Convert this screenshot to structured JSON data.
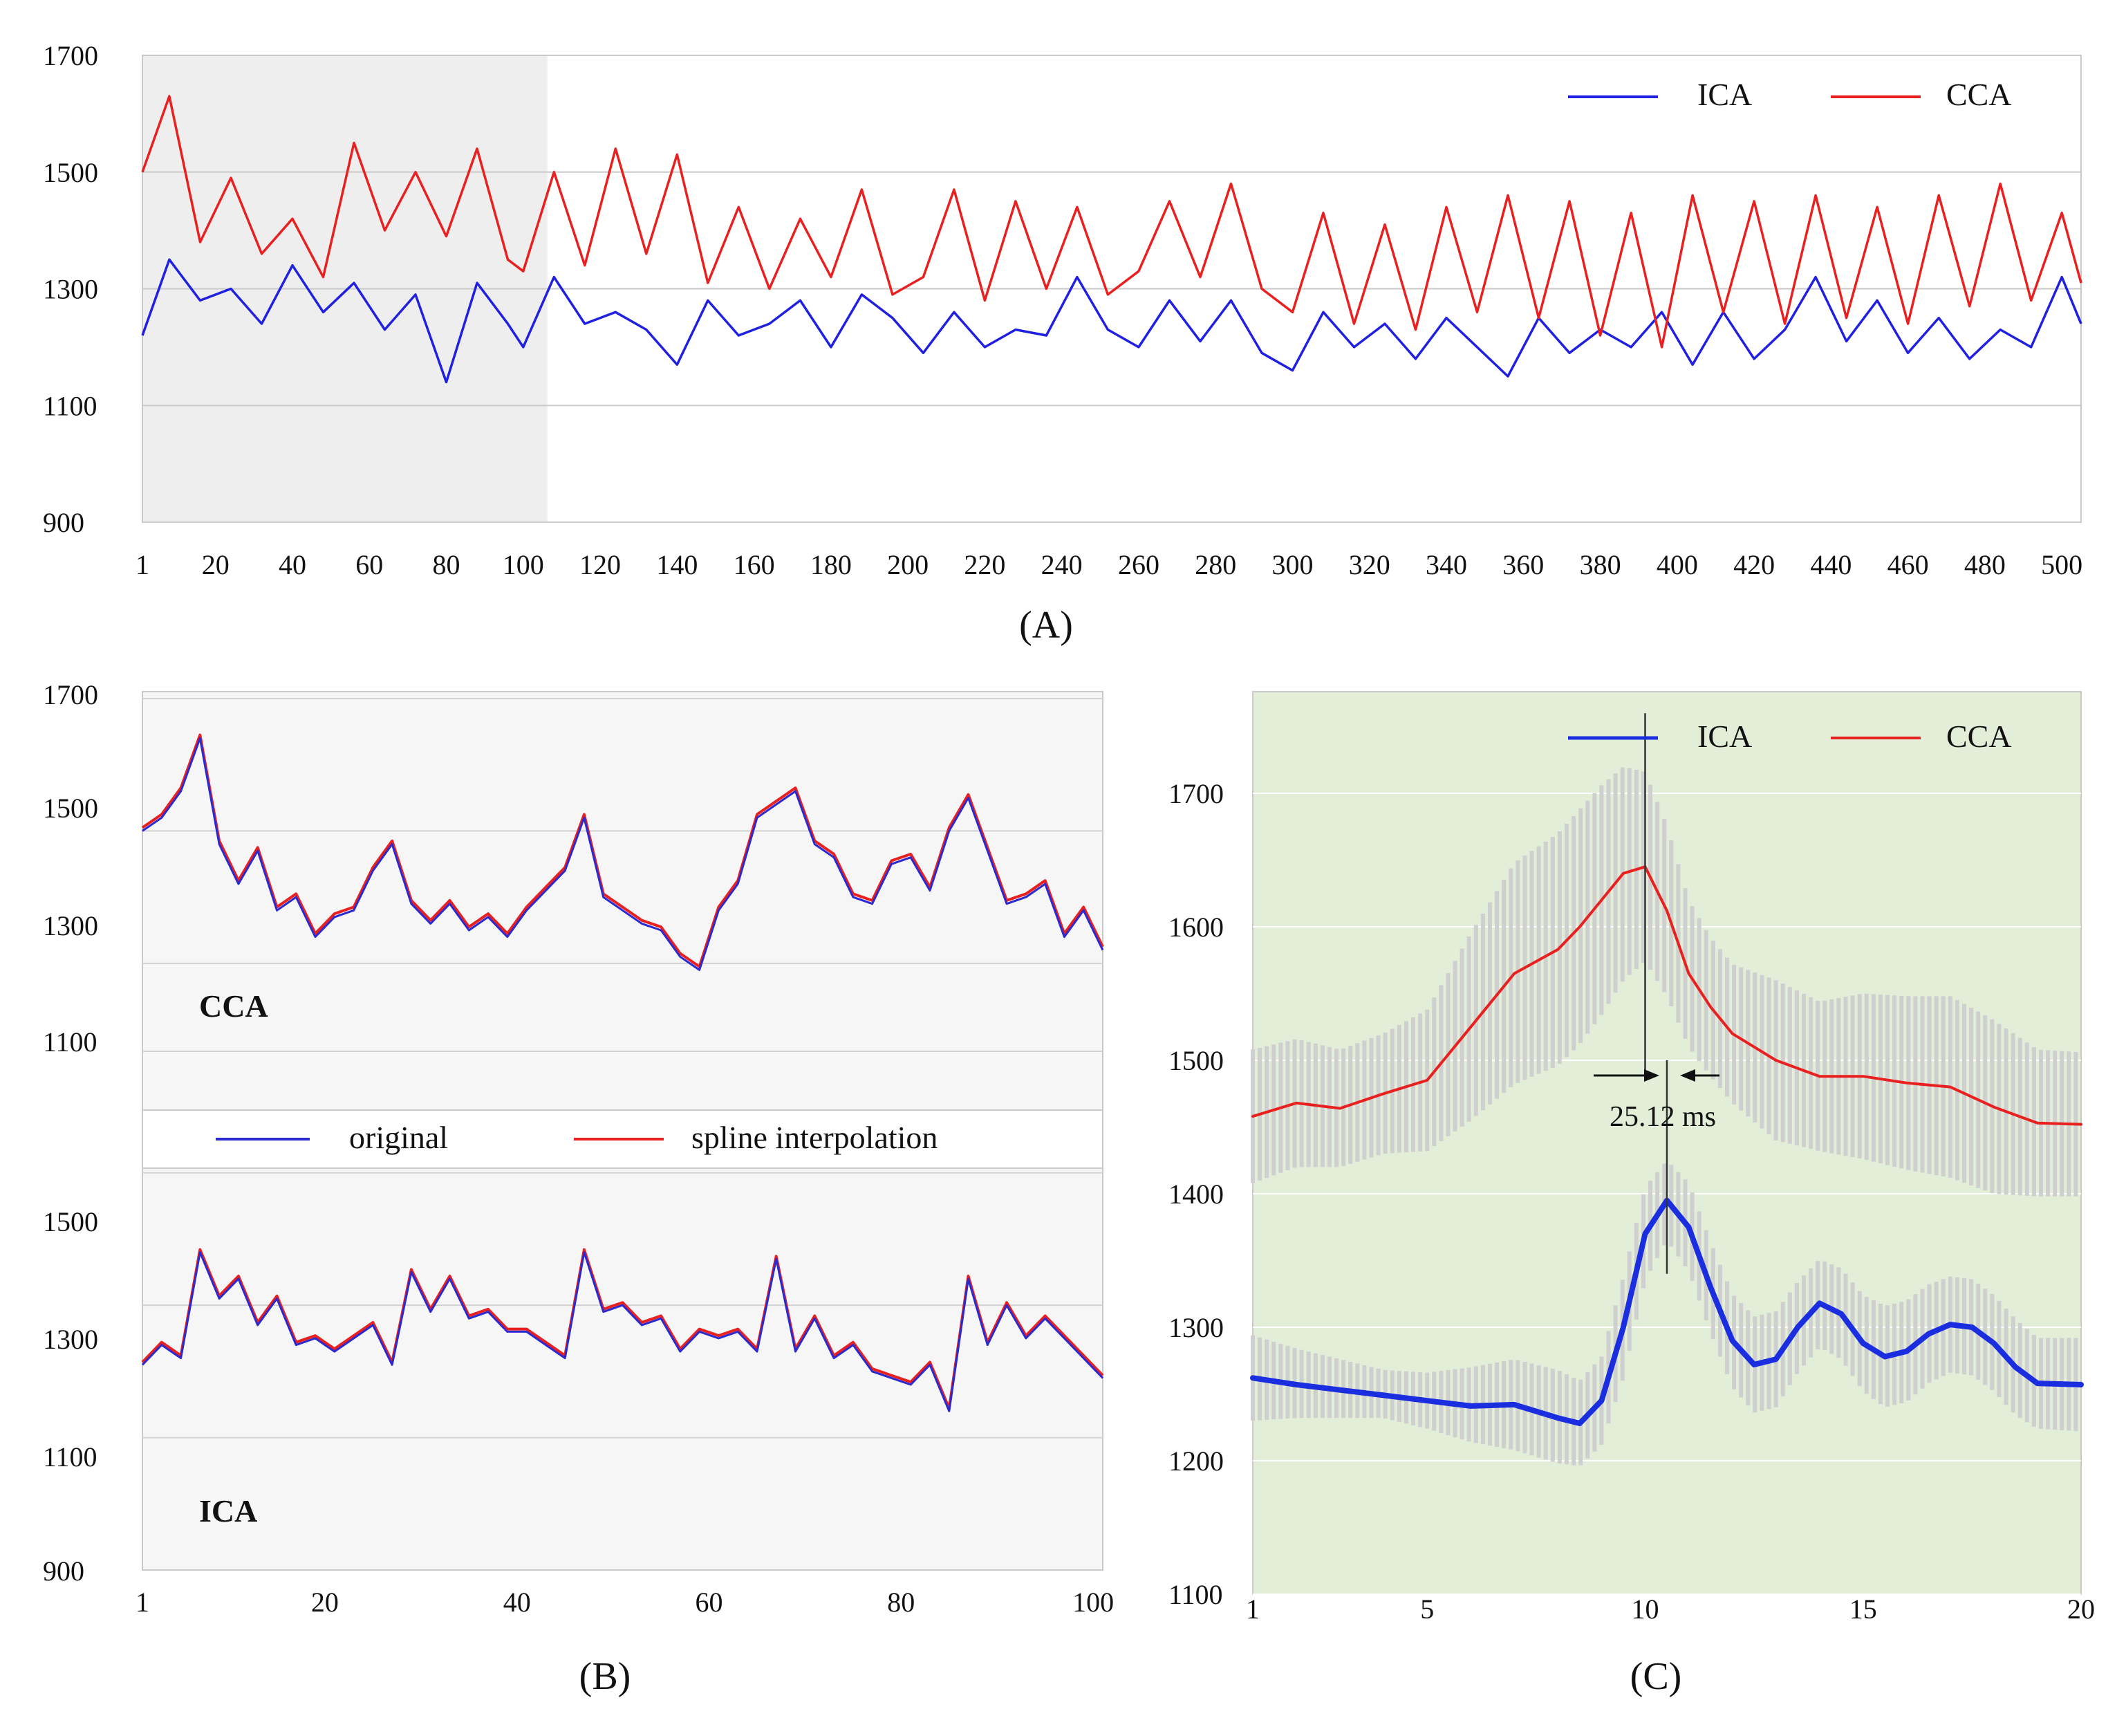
{
  "chart_data": [
    {
      "panel": "A",
      "type": "line",
      "panel_label": "(A)",
      "x_range": [
        1,
        505
      ],
      "ylim": [
        900,
        1700
      ],
      "yticks": [
        900,
        1100,
        1300,
        1500,
        1700
      ],
      "xticks": [
        1,
        20,
        40,
        60,
        80,
        100,
        120,
        140,
        160,
        180,
        200,
        220,
        240,
        260,
        280,
        300,
        320,
        340,
        360,
        380,
        400,
        420,
        440,
        460,
        480,
        500
      ],
      "shaded_region": [
        1,
        100
      ],
      "grid": "horizontal",
      "legend_position": "top-right",
      "series": [
        {
          "name": "ICA",
          "color": "#2020e0",
          "x": [
            1,
            8,
            16,
            24,
            32,
            40,
            48,
            56,
            64,
            72,
            80,
            88,
            96,
            100,
            108,
            116,
            124,
            132,
            140,
            148,
            156,
            164,
            172,
            180,
            188,
            196,
            204,
            212,
            220,
            228,
            236,
            244,
            252,
            260,
            268,
            276,
            284,
            292,
            300,
            308,
            316,
            324,
            332,
            340,
            348,
            356,
            364,
            372,
            380,
            388,
            396,
            404,
            412,
            420,
            428,
            436,
            444,
            452,
            460,
            468,
            476,
            484,
            492,
            500,
            505
          ],
          "values": [
            1220,
            1350,
            1280,
            1300,
            1240,
            1340,
            1260,
            1310,
            1230,
            1290,
            1140,
            1310,
            1240,
            1200,
            1320,
            1240,
            1260,
            1230,
            1170,
            1280,
            1220,
            1240,
            1280,
            1200,
            1290,
            1250,
            1190,
            1260,
            1200,
            1230,
            1220,
            1320,
            1230,
            1200,
            1280,
            1210,
            1280,
            1190,
            1160,
            1260,
            1200,
            1240,
            1180,
            1250,
            1200,
            1150,
            1250,
            1190,
            1230,
            1200,
            1260,
            1170,
            1260,
            1180,
            1230,
            1320,
            1210,
            1280,
            1190,
            1250,
            1180,
            1230,
            1200,
            1320,
            1240
          ]
        },
        {
          "name": "CCA",
          "color": "#e82020",
          "x": [
            1,
            8,
            16,
            24,
            32,
            40,
            48,
            56,
            64,
            72,
            80,
            88,
            96,
            100,
            108,
            116,
            124,
            132,
            140,
            148,
            156,
            164,
            172,
            180,
            188,
            196,
            204,
            212,
            220,
            228,
            236,
            244,
            252,
            260,
            268,
            276,
            284,
            292,
            300,
            308,
            316,
            324,
            332,
            340,
            348,
            356,
            364,
            372,
            380,
            388,
            396,
            404,
            412,
            420,
            428,
            436,
            444,
            452,
            460,
            468,
            476,
            484,
            492,
            500,
            505
          ],
          "values": [
            1500,
            1630,
            1380,
            1490,
            1360,
            1420,
            1320,
            1550,
            1400,
            1500,
            1390,
            1540,
            1350,
            1330,
            1500,
            1340,
            1540,
            1360,
            1530,
            1310,
            1440,
            1300,
            1420,
            1320,
            1470,
            1290,
            1320,
            1470,
            1280,
            1450,
            1300,
            1440,
            1290,
            1330,
            1450,
            1320,
            1480,
            1300,
            1260,
            1430,
            1240,
            1410,
            1230,
            1440,
            1260,
            1460,
            1250,
            1450,
            1220,
            1430,
            1200,
            1460,
            1260,
            1450,
            1240,
            1460,
            1250,
            1440,
            1240,
            1460,
            1270,
            1480,
            1280,
            1430,
            1310
          ]
        }
      ]
    },
    {
      "panel": "B",
      "type": "line",
      "panel_label": "(B)",
      "x_range": [
        1,
        101
      ],
      "ylim": [
        900,
        1700
      ],
      "yticks": [
        900,
        1100,
        1300,
        1500,
        1700
      ],
      "ylim_top_section": [
        1000,
        1700
      ],
      "ylim_bottom_section": [
        900,
        1600
      ],
      "xticks": [
        1,
        20,
        40,
        60,
        80,
        100
      ],
      "grid": "horizontal",
      "legend_position": "center",
      "inline_labels": [
        "CCA",
        "ICA"
      ],
      "series": [
        {
          "name": "original",
          "color": "#2a2ad0",
          "group": "CCA",
          "x": [
            1,
            3,
            5,
            7,
            9,
            11,
            13,
            15,
            17,
            19,
            21,
            23,
            25,
            27,
            29,
            31,
            33,
            35,
            37,
            39,
            41,
            43,
            45,
            47,
            49,
            51,
            53,
            55,
            57,
            59,
            61,
            63,
            65,
            67,
            69,
            71,
            73,
            75,
            77,
            79,
            81,
            83,
            85,
            87,
            89,
            91,
            93,
            95,
            97,
            99,
            101
          ],
          "values": [
            1500,
            1520,
            1560,
            1640,
            1480,
            1420,
            1470,
            1380,
            1400,
            1340,
            1370,
            1380,
            1440,
            1480,
            1390,
            1360,
            1390,
            1350,
            1370,
            1340,
            1380,
            1410,
            1440,
            1520,
            1400,
            1380,
            1360,
            1350,
            1310,
            1290,
            1380,
            1420,
            1520,
            1540,
            1560,
            1480,
            1460,
            1400,
            1390,
            1450,
            1460,
            1410,
            1500,
            1550,
            1470,
            1390,
            1400,
            1420,
            1340,
            1380,
            1320
          ]
        },
        {
          "name": "spline interpolation",
          "color": "#e82020",
          "group": "CCA",
          "x": [
            1,
            3,
            5,
            7,
            9,
            11,
            13,
            15,
            17,
            19,
            21,
            23,
            25,
            27,
            29,
            31,
            33,
            35,
            37,
            39,
            41,
            43,
            45,
            47,
            49,
            51,
            53,
            55,
            57,
            59,
            61,
            63,
            65,
            67,
            69,
            71,
            73,
            75,
            77,
            79,
            81,
            83,
            85,
            87,
            89,
            91,
            93,
            95,
            97,
            99,
            101
          ],
          "values": [
            1505,
            1525,
            1565,
            1645,
            1485,
            1425,
            1475,
            1385,
            1405,
            1345,
            1375,
            1385,
            1445,
            1485,
            1395,
            1365,
            1395,
            1355,
            1375,
            1345,
            1385,
            1415,
            1445,
            1525,
            1405,
            1385,
            1365,
            1355,
            1315,
            1295,
            1385,
            1425,
            1525,
            1545,
            1565,
            1485,
            1465,
            1405,
            1395,
            1455,
            1465,
            1415,
            1505,
            1555,
            1475,
            1395,
            1405,
            1425,
            1345,
            1385,
            1325
          ]
        },
        {
          "name": "original",
          "color": "#2a2ad0",
          "group": "ICA",
          "x": [
            1,
            3,
            5,
            7,
            9,
            11,
            13,
            15,
            17,
            19,
            21,
            23,
            25,
            27,
            29,
            31,
            33,
            35,
            37,
            39,
            41,
            43,
            45,
            47,
            49,
            51,
            53,
            55,
            57,
            59,
            61,
            63,
            65,
            67,
            69,
            71,
            73,
            75,
            77,
            79,
            81,
            83,
            85,
            87,
            89,
            91,
            93,
            95,
            97,
            99,
            101
          ],
          "values": [
            1210,
            1240,
            1220,
            1380,
            1310,
            1340,
            1270,
            1310,
            1240,
            1250,
            1230,
            1250,
            1270,
            1210,
            1350,
            1290,
            1340,
            1280,
            1290,
            1260,
            1260,
            1240,
            1220,
            1380,
            1290,
            1300,
            1270,
            1280,
            1230,
            1260,
            1250,
            1260,
            1230,
            1370,
            1230,
            1280,
            1220,
            1240,
            1200,
            1190,
            1180,
            1210,
            1140,
            1340,
            1240,
            1300,
            1250,
            1280,
            1250,
            1220,
            1190
          ]
        },
        {
          "name": "spline interpolation",
          "color": "#e82020",
          "group": "ICA",
          "x": [
            1,
            3,
            5,
            7,
            9,
            11,
            13,
            15,
            17,
            19,
            21,
            23,
            25,
            27,
            29,
            31,
            33,
            35,
            37,
            39,
            41,
            43,
            45,
            47,
            49,
            51,
            53,
            55,
            57,
            59,
            61,
            63,
            65,
            67,
            69,
            71,
            73,
            75,
            77,
            79,
            81,
            83,
            85,
            87,
            89,
            91,
            93,
            95,
            97,
            99,
            101
          ],
          "values": [
            1214,
            1244,
            1224,
            1384,
            1314,
            1344,
            1274,
            1314,
            1244,
            1254,
            1234,
            1254,
            1274,
            1214,
            1354,
            1294,
            1344,
            1284,
            1294,
            1264,
            1264,
            1244,
            1224,
            1384,
            1294,
            1304,
            1274,
            1284,
            1234,
            1264,
            1254,
            1264,
            1234,
            1374,
            1234,
            1284,
            1224,
            1244,
            1204,
            1194,
            1184,
            1214,
            1144,
            1344,
            1244,
            1304,
            1254,
            1284,
            1254,
            1224,
            1194
          ]
        }
      ]
    },
    {
      "panel": "C",
      "type": "line",
      "panel_label": "(C)",
      "x_range": [
        1,
        20
      ],
      "ylim": [
        1100,
        1760
      ],
      "yticks": [
        1100,
        1200,
        1300,
        1400,
        1500,
        1600,
        1700
      ],
      "xticks": [
        1,
        5,
        10,
        15,
        20
      ],
      "grid": "horizontal",
      "legend_position": "top-right",
      "annotation": "25.12 ms",
      "series": [
        {
          "name": "ICA",
          "color": "#1a2ee0",
          "x": [
            1,
            2,
            3,
            4,
            5,
            6,
            7,
            8,
            8.5,
            9,
            9.5,
            10,
            10.5,
            11,
            11.5,
            12,
            12.5,
            13,
            13.5,
            14,
            14.5,
            15,
            15.5,
            16,
            16.5,
            17,
            17.5,
            18,
            18.5,
            19,
            20
          ],
          "values": [
            1262,
            1257,
            1253,
            1249,
            1245,
            1241,
            1242,
            1232,
            1228,
            1245,
            1300,
            1370,
            1395,
            1375,
            1330,
            1290,
            1272,
            1276,
            1300,
            1318,
            1310,
            1288,
            1278,
            1282,
            1295,
            1302,
            1300,
            1288,
            1270,
            1258,
            1257
          ],
          "band_low": [
            1230,
            1232,
            1232,
            1232,
            1224,
            1214,
            1208,
            1198,
            1196,
            1212,
            1262,
            1335,
            1365,
            1342,
            1296,
            1255,
            1236,
            1240,
            1266,
            1285,
            1276,
            1252,
            1240,
            1244,
            1258,
            1266,
            1264,
            1252,
            1234,
            1224,
            1222
          ],
          "band_high": [
            1294,
            1284,
            1276,
            1268,
            1266,
            1270,
            1276,
            1268,
            1260,
            1278,
            1338,
            1405,
            1425,
            1408,
            1364,
            1325,
            1308,
            1312,
            1334,
            1351,
            1344,
            1324,
            1316,
            1320,
            1332,
            1338,
            1336,
            1324,
            1306,
            1292,
            1292
          ]
        },
        {
          "name": "CCA",
          "color": "#e82020",
          "x": [
            1,
            2,
            3,
            4,
            5,
            6,
            7,
            8,
            8.5,
            9,
            9.5,
            10,
            10.5,
            11,
            11.5,
            12,
            13,
            14,
            15,
            16,
            17,
            18,
            19,
            20
          ],
          "values": [
            1458,
            1468,
            1464,
            1475,
            1485,
            1525,
            1565,
            1583,
            1600,
            1620,
            1640,
            1645,
            1612,
            1565,
            1540,
            1520,
            1500,
            1488,
            1488,
            1483,
            1480,
            1465,
            1453,
            1452
          ],
          "band_low": [
            1408,
            1420,
            1420,
            1430,
            1432,
            1455,
            1482,
            1496,
            1512,
            1534,
            1560,
            1574,
            1548,
            1510,
            1488,
            1468,
            1440,
            1432,
            1426,
            1418,
            1412,
            1400,
            1398,
            1398
          ],
          "band_high": [
            1508,
            1516,
            1508,
            1520,
            1538,
            1595,
            1648,
            1670,
            1688,
            1706,
            1720,
            1716,
            1676,
            1620,
            1592,
            1572,
            1560,
            1544,
            1550,
            1548,
            1548,
            1530,
            1508,
            1506
          ]
        }
      ]
    }
  ]
}
